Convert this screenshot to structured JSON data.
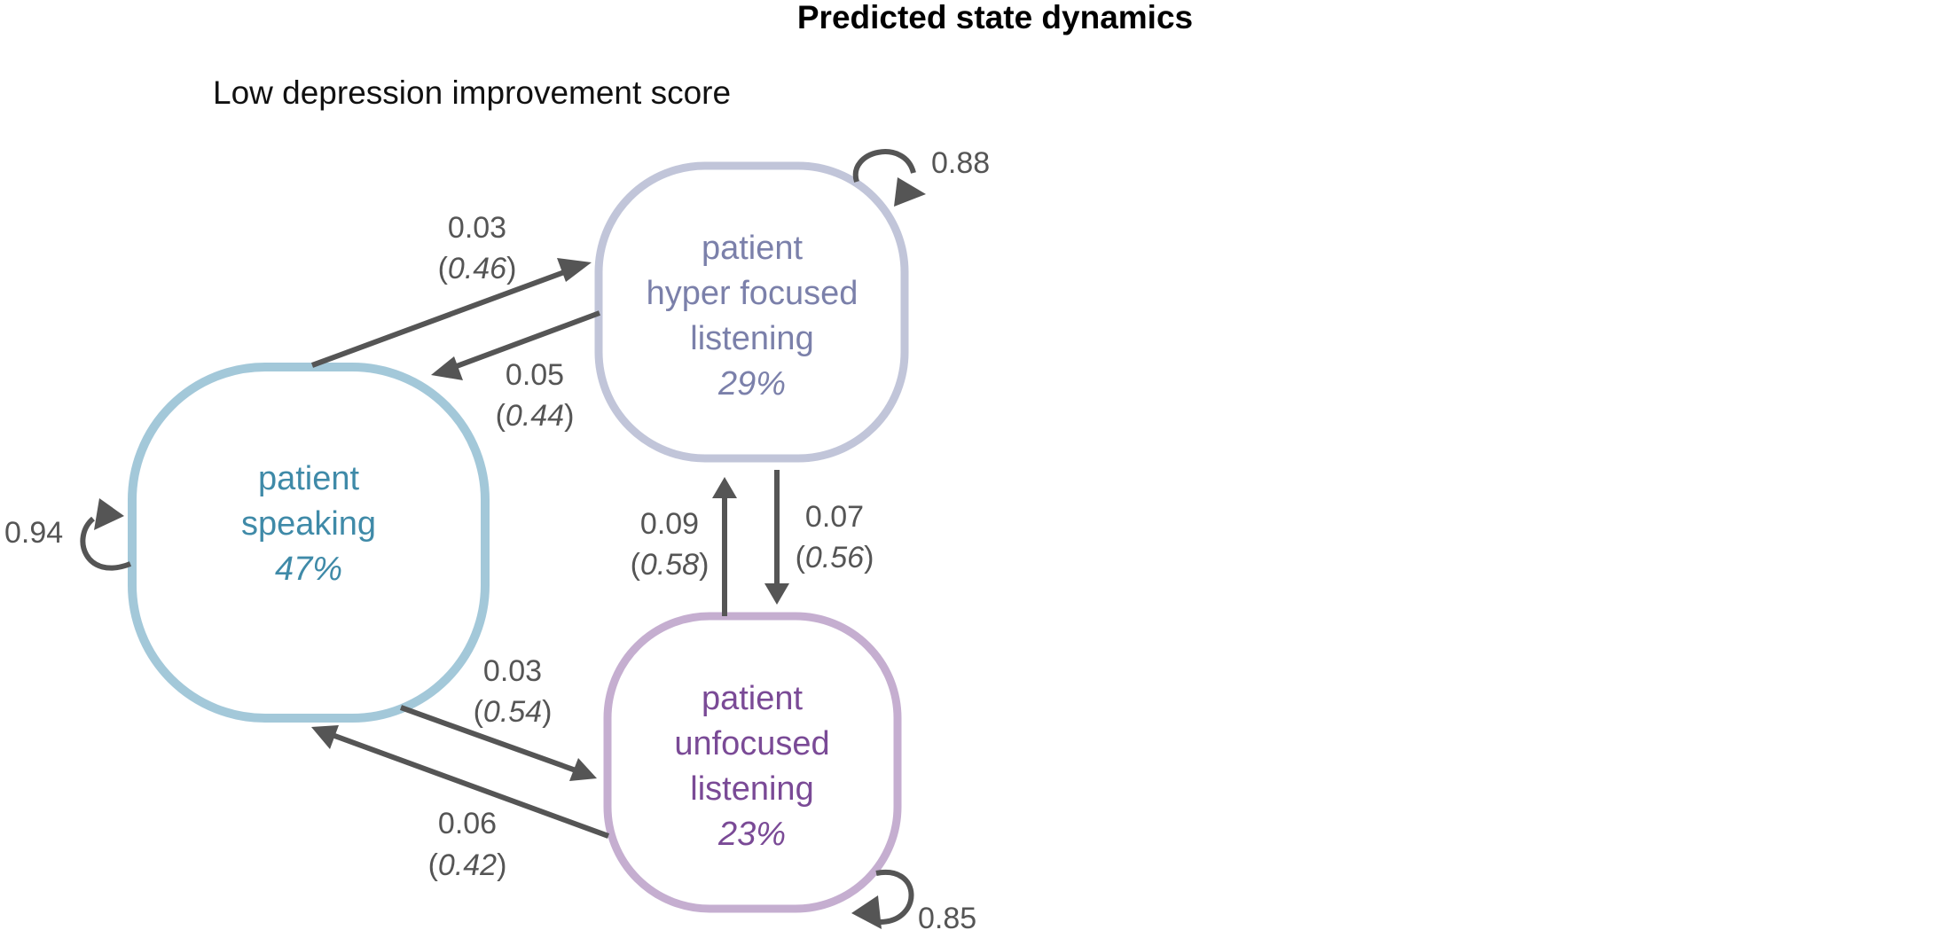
{
  "title": "Predicted state dynamics",
  "subtitle": "Low depression improvement score",
  "colors": {
    "speaking": "#a3c8d9",
    "speaking_text": "#3f8aa8",
    "hyper": "#c1c5d9",
    "hyper_text": "#7b80aa",
    "unfocused": "#c5aed0",
    "unfocused_text": "#7a4a96",
    "edge": "#555555"
  },
  "states": {
    "speaking": {
      "name_lines": [
        "patient",
        "speaking"
      ],
      "percent": "47%"
    },
    "hyper": {
      "name_lines": [
        "patient",
        "hyper focused",
        "listening"
      ],
      "percent": "29%"
    },
    "unfocused": {
      "name_lines": [
        "patient",
        "unfocused",
        "listening"
      ],
      "percent": "23%"
    }
  },
  "self_loops": {
    "speaking": "0.94",
    "hyper": "0.88",
    "unfocused": "0.85"
  },
  "transitions": {
    "speaking_to_hyper": {
      "prob": "0.03",
      "paren": "0.46"
    },
    "hyper_to_speaking": {
      "prob": "0.05",
      "paren": "0.44"
    },
    "unfocused_to_hyper": {
      "prob": "0.09",
      "paren": "0.58"
    },
    "hyper_to_unfocused": {
      "prob": "0.07",
      "paren": "0.56"
    },
    "speaking_to_unfocused": {
      "prob": "0.03",
      "paren": "0.54"
    },
    "unfocused_to_speaking": {
      "prob": "0.06",
      "paren": "0.42"
    }
  }
}
